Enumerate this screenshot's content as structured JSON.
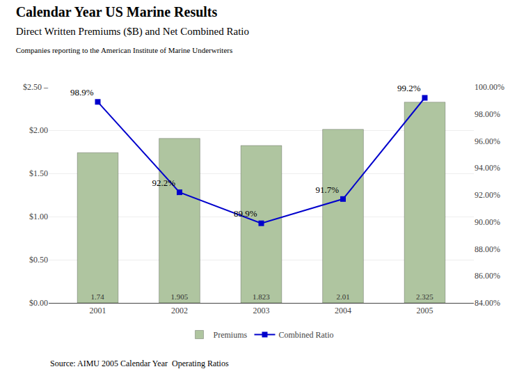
{
  "chart_data": {
    "type": "bar",
    "title": "Calendar Year US Marine Results",
    "subtitle": [
      "Direct Written Premiums ($B) and Net Combined Ratio",
      "Companies reporting to the American Institute of Marine Underwriters"
    ],
    "annotations": [
      "Source: AIMU 2005 Calendar Year  Operating Ratios"
    ],
    "x": [
      2001,
      2002,
      2003,
      2004,
      2005
    ],
    "xlim": [
      2000.4,
      2005.6
    ],
    "xticks": [
      2001,
      2002,
      2003,
      2004,
      2005
    ],
    "series": [
      {
        "name": "Premiums",
        "type": "bar",
        "color": "#afc5a0",
        "values": [
          1.74,
          1.905,
          1.823,
          2.01,
          2.325
        ],
        "data_labels": true
      },
      {
        "name": "Combined Ratio",
        "type": "line",
        "color": "#0000cc",
        "marker": "square",
        "axis": "y2",
        "values": [
          98.9,
          92.2,
          89.9,
          91.7,
          99.2
        ],
        "value_labels": [
          "98.9%",
          "92.2%",
          "89.9%",
          "91.7%",
          "99.2%"
        ],
        "data_labels": true
      }
    ],
    "ylim": [
      0.0,
      2.5
    ],
    "yticks": [
      {
        "value": 0.0,
        "label": "$0.00"
      },
      {
        "value": 0.5,
        "label": "$0.50"
      },
      {
        "value": 1.0,
        "label": "$1.00"
      },
      {
        "value": 1.5,
        "label": "$1.50"
      },
      {
        "value": 2.0,
        "label": "$2.00"
      },
      {
        "value": 2.5,
        "label": "$2.50 –"
      }
    ],
    "y2lim": [
      84.0,
      100.0
    ],
    "y2ticks": [
      {
        "value": 84.0,
        "label": "84.00%"
      },
      {
        "value": 86.0,
        "label": "86.00%"
      },
      {
        "value": 88.0,
        "label": "88.00%"
      },
      {
        "value": 90.0,
        "label": "90.00%"
      },
      {
        "value": 92.0,
        "label": "92.00%"
      },
      {
        "value": 94.0,
        "label": "94.00%"
      },
      {
        "value": 96.0,
        "label": "96.00%"
      },
      {
        "value": 98.0,
        "label": "98.00%"
      },
      {
        "value": 100.0,
        "label": "100.00%"
      }
    ],
    "grid": true,
    "legend": "bottom"
  }
}
